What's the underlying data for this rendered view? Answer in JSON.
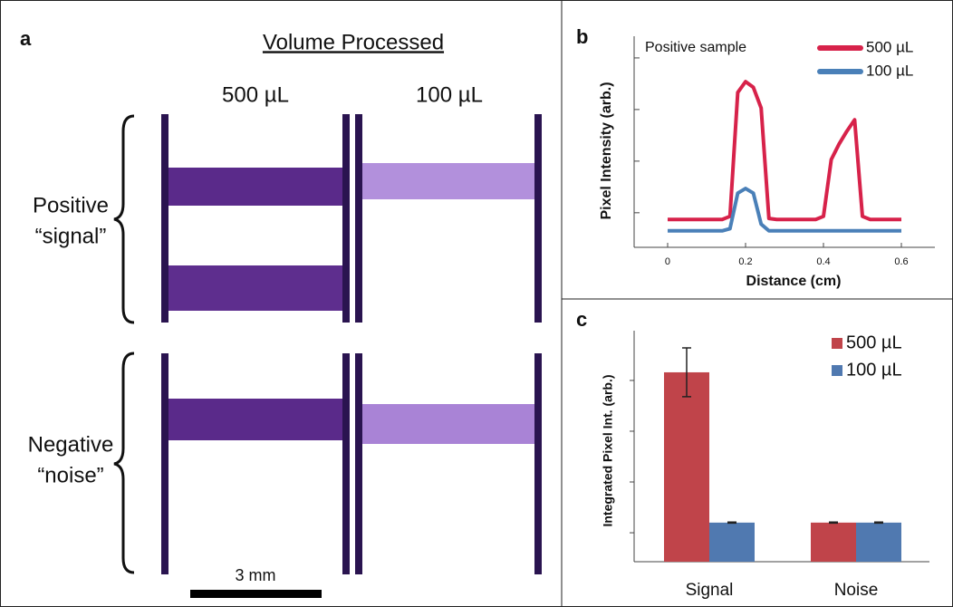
{
  "panel_a": {
    "label": "a",
    "title": "Volume Processed",
    "columns": [
      "500 µL",
      "100 µL"
    ],
    "rows": [
      {
        "line1": "Positive",
        "line2": "“signal”"
      },
      {
        "line1": "Negative",
        "line2": "“noise”"
      }
    ],
    "scale_bar": "3 mm"
  },
  "chart_data": [
    {
      "type": "line",
      "panel_label": "b",
      "annotation": "Positive sample",
      "xlabel": "Distance (cm)",
      "ylabel": "Pixel Intensity (arb.)",
      "x": [
        0,
        0.02,
        0.04,
        0.06,
        0.08,
        0.1,
        0.12,
        0.14,
        0.16,
        0.18,
        0.2,
        0.22,
        0.24,
        0.26,
        0.28,
        0.3,
        0.32,
        0.34,
        0.36,
        0.38,
        0.4,
        0.42,
        0.44,
        0.46,
        0.48,
        0.5,
        0.52,
        0.54,
        0.56,
        0.58,
        0.6
      ],
      "series": [
        {
          "name": "500 µL",
          "color": "#d7224a",
          "values": [
            0.54,
            0.54,
            0.54,
            0.54,
            0.54,
            0.54,
            0.54,
            0.54,
            0.6,
            3.0,
            3.21,
            3.1,
            2.7,
            0.56,
            0.54,
            0.54,
            0.54,
            0.54,
            0.54,
            0.54,
            0.6,
            1.7,
            2.0,
            2.25,
            2.47,
            0.6,
            0.54,
            0.54,
            0.54,
            0.54,
            0.54
          ]
        },
        {
          "name": "100 µL",
          "color": "#4a80b8",
          "values": [
            0.32,
            0.32,
            0.32,
            0.32,
            0.32,
            0.32,
            0.32,
            0.32,
            0.36,
            1.05,
            1.14,
            1.05,
            0.45,
            0.32,
            0.32,
            0.32,
            0.32,
            0.32,
            0.32,
            0.32,
            0.32,
            0.32,
            0.32,
            0.32,
            0.32,
            0.32,
            0.32,
            0.32,
            0.32,
            0.32,
            0.32
          ]
        }
      ],
      "xlim": [
        -0.086,
        0.686
      ],
      "xticks": [
        0,
        0.2,
        0.4,
        0.6
      ],
      "ylim": [
        0,
        4.09
      ],
      "yticks": [
        0.67,
        1.67,
        2.67,
        3.67
      ]
    },
    {
      "type": "bar",
      "panel_label": "c",
      "ylabel": "Integrated Pixel Int. (arb.)",
      "categories": [
        "Signal",
        "Noise"
      ],
      "series": [
        {
          "name": "500 µL",
          "color": "#c0444a",
          "values": [
            3.73,
            0.77
          ],
          "errors": [
            0.48,
            0.01
          ]
        },
        {
          "name": "100 µL",
          "color": "#5079b0",
          "values": [
            0.77,
            0.77
          ],
          "errors": [
            0.01,
            0.01
          ]
        }
      ],
      "ylim": [
        0,
        4.55
      ],
      "yticks": [
        0.57,
        1.57,
        2.57,
        3.57
      ]
    }
  ]
}
